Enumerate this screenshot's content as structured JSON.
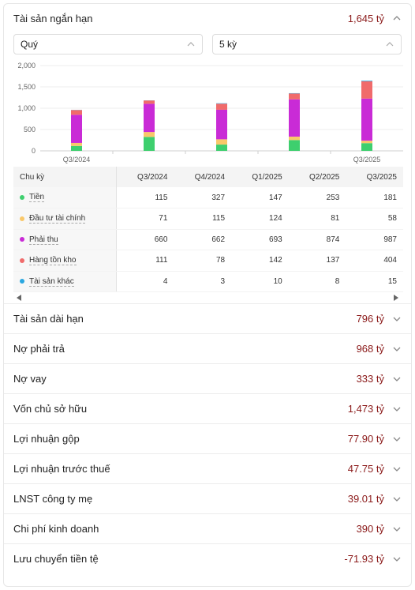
{
  "top_section": {
    "title": "Tài sản ngắn hạn",
    "value": "1,645 tỷ"
  },
  "selects": {
    "period": "Quý",
    "count": "5 kỳ"
  },
  "colors": {
    "cash": "#3ecf6e",
    "invest": "#f9c86a",
    "receivable": "#c92bd6",
    "inventory": "#f06b6b",
    "other": "#2aa7e0",
    "value_red": "#8b1a1a"
  },
  "chart_data": {
    "type": "bar",
    "stacked": true,
    "categories": [
      "Q3/2024",
      "Q4/2024",
      "Q1/2025",
      "Q2/2025",
      "Q3/2025"
    ],
    "x_tick_labels_shown": [
      "Q3/2024",
      "Q3/2025"
    ],
    "y_ticks": [
      "0",
      "500",
      "1,000",
      "1,500",
      "2,000"
    ],
    "ylim": [
      0,
      2000
    ],
    "series": [
      {
        "name": "Tiền",
        "values": [
          115,
          327,
          147,
          253,
          181
        ]
      },
      {
        "name": "Đầu tư tài chính",
        "values": [
          71,
          115,
          124,
          81,
          58
        ]
      },
      {
        "name": "Phải thu",
        "values": [
          660,
          662,
          693,
          874,
          987
        ]
      },
      {
        "name": "Hàng tồn kho",
        "values": [
          111,
          78,
          142,
          137,
          404
        ]
      },
      {
        "name": "Tài sản khác",
        "values": [
          4,
          3,
          10,
          8,
          15
        ]
      }
    ]
  },
  "table": {
    "header_label": "Chu kỳ",
    "columns": [
      "Q3/2024",
      "Q4/2024",
      "Q1/2025",
      "Q2/2025",
      "Q3/2025"
    ],
    "rows": [
      {
        "label": "Tiền",
        "values": [
          "115",
          "327",
          "147",
          "253",
          "181"
        ]
      },
      {
        "label": "Đầu tư tài chính",
        "values": [
          "71",
          "115",
          "124",
          "81",
          "58"
        ]
      },
      {
        "label": "Phải thu",
        "values": [
          "660",
          "662",
          "693",
          "874",
          "987"
        ]
      },
      {
        "label": "Hàng tồn kho",
        "values": [
          "111",
          "78",
          "142",
          "137",
          "404"
        ]
      },
      {
        "label": "Tài sản khác",
        "values": [
          "4",
          "3",
          "10",
          "8",
          "15"
        ]
      }
    ]
  },
  "sections": [
    {
      "title": "Tài sản dài hạn",
      "value": "796 tỷ"
    },
    {
      "title": "Nợ phải trả",
      "value": "968 tỷ"
    },
    {
      "title": "Nợ vay",
      "value": "333 tỷ"
    },
    {
      "title": "Vốn chủ sở hữu",
      "value": "1,473 tỷ"
    },
    {
      "title": "Lợi nhuận gộp",
      "value": "77.90 tỷ"
    },
    {
      "title": "Lợi nhuận trước thuế",
      "value": "47.75 tỷ"
    },
    {
      "title": "LNST công ty mẹ",
      "value": "39.01 tỷ"
    },
    {
      "title": "Chi phí kinh doanh",
      "value": "390 tỷ"
    },
    {
      "title": "Lưu chuyển tiền tệ",
      "value": "-71.93 tỷ"
    }
  ]
}
